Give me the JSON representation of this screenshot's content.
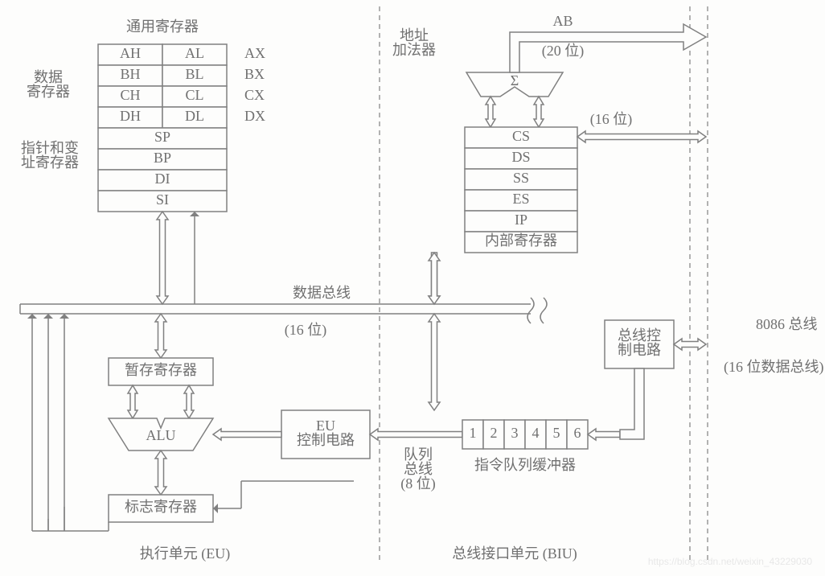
{
  "type": "block-diagram",
  "colors": {
    "bg": "#fdfdfc",
    "stroke": "#808080",
    "text": "#707070"
  },
  "labels": {
    "general_reg": "通用寄存器",
    "data_reg": "数据\n寄存器",
    "ptr_reg": "指针和变\n址寄存器",
    "addr_adder": "地址\n加法器",
    "AB": "AB",
    "bits20": "(20 位)",
    "bits16a": "(16 位)",
    "sigma": "Σ",
    "internal_reg": "内部寄存器",
    "data_bus": "数据总线",
    "bits16b": "(16 位)",
    "temp_reg": "暂存寄存器",
    "ALU": "ALU",
    "eu_ctrl": "EU\n控制电路",
    "queue_bus": "队列\n总线\n(8 位)",
    "queue_buf": "指令队列缓冲器",
    "bus_ctrl": "总线控\n制电路",
    "bus_8086": "8086 总线",
    "bus_16data": "(16 位数据总线)",
    "flag_reg": "标志寄存器",
    "eu": "执行单元 (EU)",
    "biu": "总线接口单元 (BIU)",
    "watermark": "https://blog.csdn.net/weixin_43229030"
  },
  "gp_regs": [
    {
      "hi": "AH",
      "lo": "AL",
      "x": "AX"
    },
    {
      "hi": "BH",
      "lo": "BL",
      "x": "BX"
    },
    {
      "hi": "CH",
      "lo": "CL",
      "x": "CX"
    },
    {
      "hi": "DH",
      "lo": "DL",
      "x": "DX"
    }
  ],
  "ptr_regs": [
    "SP",
    "BP",
    "DI",
    "SI"
  ],
  "seg_regs": [
    "CS",
    "DS",
    "SS",
    "ES",
    "IP"
  ],
  "queue": [
    "1",
    "2",
    "3",
    "4",
    "5",
    "6"
  ],
  "font_sizes": {
    "normal": 18,
    "small": 16
  }
}
